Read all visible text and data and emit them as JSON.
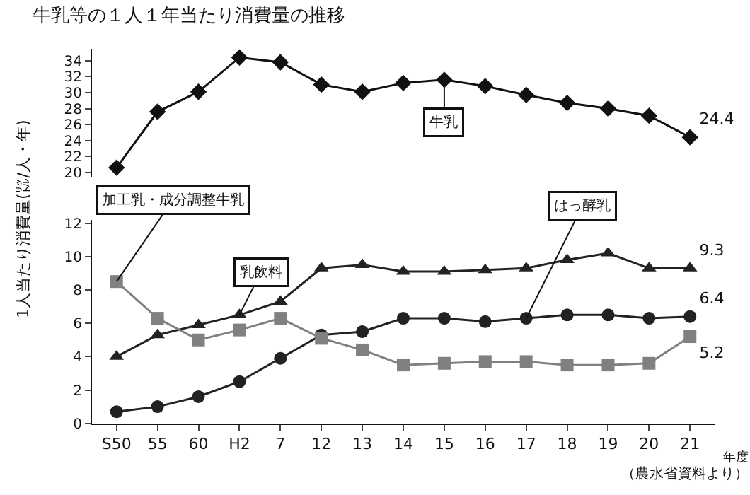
{
  "chart_data": [
    {
      "type": "line",
      "title": "牛乳等の１人１年当たり消費量の推移",
      "ylabel": "1人当たり消費量(㍑/人・年)",
      "tick_labels": "y",
      "categories": [
        "S50",
        "55",
        "60",
        "H2",
        "7",
        "12",
        "13",
        "14",
        "15",
        "16",
        "17",
        "18",
        "19",
        "20",
        "21"
      ],
      "ylim": [
        19.5,
        35.5
      ],
      "yticks": [
        20,
        22,
        24,
        26,
        28,
        30,
        32,
        34
      ],
      "series": [
        {
          "name": "牛乳",
          "color": "#111111",
          "marker": "diamond",
          "values": [
            20.6,
            27.6,
            30.1,
            34.4,
            33.8,
            31.0,
            30.1,
            31.2,
            31.6,
            30.8,
            29.7,
            28.7,
            28.0,
            27.1,
            24.4
          ],
          "value_labels": [
            null,
            null,
            null,
            null,
            null,
            null,
            null,
            null,
            null,
            null,
            null,
            null,
            null,
            null,
            "24.4"
          ]
        }
      ]
    },
    {
      "type": "line",
      "xlabel": "年度",
      "categories": [
        "S50",
        "55",
        "60",
        "H2",
        "7",
        "12",
        "13",
        "14",
        "15",
        "16",
        "17",
        "18",
        "19",
        "20",
        "21"
      ],
      "ylim": [
        0,
        12.2
      ],
      "yticks": [
        0,
        2,
        4,
        6,
        8,
        10,
        12
      ],
      "annotations": [
        "（農水省資料より）"
      ],
      "series": [
        {
          "name": "加工乳・成分調整牛乳",
          "color": "#808080",
          "marker": "square",
          "values": [
            8.5,
            6.3,
            5.0,
            5.6,
            6.3,
            5.1,
            4.4,
            3.5,
            3.6,
            3.7,
            3.7,
            3.5,
            3.5,
            3.6,
            5.2
          ],
          "value_labels": [
            null,
            null,
            null,
            null,
            null,
            null,
            null,
            null,
            null,
            null,
            null,
            null,
            null,
            null,
            "5.2"
          ]
        },
        {
          "name": "乳飲料",
          "color": "#222222",
          "marker": "triangle",
          "values": [
            4.0,
            5.3,
            5.9,
            6.5,
            7.3,
            9.3,
            9.5,
            9.1,
            9.1,
            9.2,
            9.3,
            9.8,
            10.2,
            9.3,
            9.3
          ],
          "value_labels": [
            null,
            null,
            null,
            null,
            null,
            null,
            null,
            null,
            null,
            null,
            null,
            null,
            null,
            null,
            "9.3"
          ]
        },
        {
          "name": "はっ酵乳",
          "color": "#222222",
          "marker": "circle",
          "values": [
            0.7,
            1.0,
            1.6,
            2.5,
            3.9,
            5.3,
            5.5,
            6.3,
            6.3,
            6.1,
            6.3,
            6.5,
            6.5,
            6.3,
            6.4
          ],
          "value_labels": [
            null,
            null,
            null,
            null,
            null,
            null,
            null,
            null,
            null,
            null,
            null,
            null,
            null,
            null,
            "6.4"
          ]
        }
      ]
    }
  ]
}
